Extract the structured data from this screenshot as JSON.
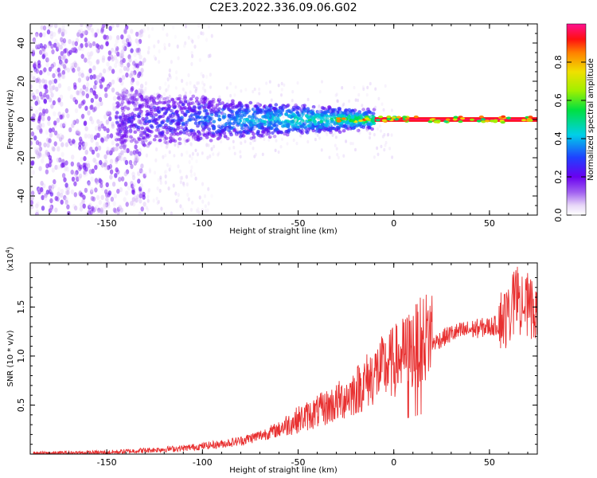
{
  "title": "C2E3.2022.336.09.06.G02",
  "chart_data": [
    {
      "type": "heatmap",
      "xlabel": "Height of straight line (km)",
      "ylabel": "Frequency (Hz)",
      "xlim": [
        -190,
        75
      ],
      "ylim": [
        -50,
        50
      ],
      "x_ticks": [
        -150,
        -100,
        -50,
        0,
        50
      ],
      "y_ticks": [
        -40,
        -20,
        0,
        20,
        40
      ],
      "colorbar": {
        "label": "Normalized spectral amplitude",
        "range": [
          0,
          1
        ],
        "ticks": [
          0.0,
          0.2,
          0.4,
          0.6,
          0.8
        ],
        "colormap": "rainbow (white-purple-blue-cyan-green-yellow-red-magenta)"
      },
      "regions": [
        {
          "x_range": [
            -190,
            -130
          ],
          "freq_spread": 50,
          "amplitude": 0.05
        },
        {
          "x_range": [
            -130,
            -100
          ],
          "freq_spread": 40,
          "amplitude": 0.03
        },
        {
          "x_range": [
            -145,
            -50
          ],
          "freq_spread": 12,
          "amplitude": 0.25
        },
        {
          "x_range": [
            -50,
            -10
          ],
          "freq_spread": 6,
          "amplitude": 0.45
        },
        {
          "x_range": [
            -10,
            75
          ],
          "freq_spread": 1,
          "amplitude": 0.95
        }
      ]
    },
    {
      "type": "line",
      "xlabel": "Height of straight line (km)",
      "ylabel": "SNR (10 * v/v)",
      "y_multiplier": "(x10^4)",
      "xlim": [
        -190,
        75
      ],
      "ylim": [
        0,
        1.95
      ],
      "x_ticks": [
        -150,
        -100,
        -50,
        0,
        50
      ],
      "y_ticks": [
        0.5,
        1.0,
        1.5
      ],
      "color": "#e83030",
      "series": [
        {
          "x": [
            -190,
            -150,
            -130,
            -110,
            -100,
            -90,
            -80,
            -70,
            -60,
            -50,
            -40,
            -30,
            -20,
            -10,
            0,
            10,
            20,
            30,
            40,
            50,
            60,
            65,
            70,
            75
          ],
          "y": [
            0.0,
            0.01,
            0.03,
            0.05,
            0.07,
            0.09,
            0.12,
            0.17,
            0.23,
            0.31,
            0.38,
            0.46,
            0.57,
            0.72,
            0.83,
            0.95,
            1.1,
            1.2,
            1.24,
            1.27,
            1.3,
            1.5,
            1.35,
            1.4
          ]
        }
      ]
    }
  ]
}
